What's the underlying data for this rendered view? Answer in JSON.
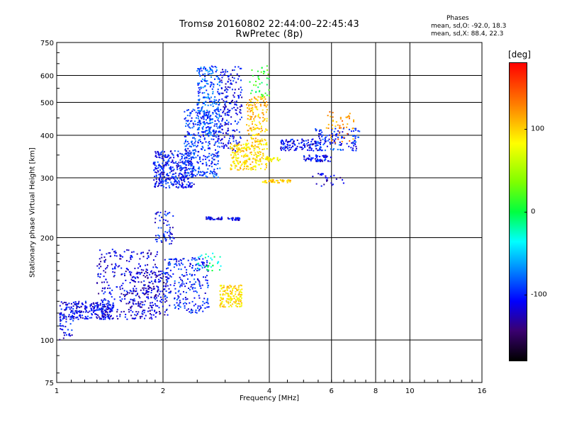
{
  "chart_data": {
    "type": "scatter",
    "title": "Tromsø 20160802 22:44:00–22:45:43",
    "subtitle": "RwPretec (8p)",
    "xlabel": "Frequency [MHz]",
    "ylabel": "Stationary phase Virtual Height [km]",
    "x_scale": "log",
    "y_scale": "log",
    "xlim": [
      1,
      16
    ],
    "ylim": [
      75,
      750
    ],
    "x_ticks": [
      "1",
      "2",
      "4",
      "6",
      "8",
      "10",
      "16"
    ],
    "x_tick_values": [
      1,
      2,
      4,
      6,
      8,
      10,
      16
    ],
    "y_ticks": [
      "75",
      "100",
      "200",
      "300",
      "400",
      "500",
      "600",
      "750"
    ],
    "y_tick_values": [
      75,
      100,
      200,
      300,
      400,
      500,
      600,
      750
    ],
    "grid": true,
    "phases": {
      "title": "Phases",
      "o_line": "mean, sd,O: -92.0, 18.3",
      "x_line": "mean, sd,X:  88.4, 22.3"
    },
    "colorbar": {
      "unit": "[deg]",
      "ticks": [
        "100",
        "0",
        "-100"
      ],
      "tick_values": [
        100,
        0,
        -100
      ],
      "range": [
        -180,
        180
      ]
    },
    "clusters": [
      {
        "fmin": 1.02,
        "fmax": 1.45,
        "hmin": 115,
        "hmax": 130,
        "phase": -110,
        "n": 260
      },
      {
        "fmin": 1.02,
        "fmax": 1.12,
        "hmin": 100,
        "hmax": 118,
        "phase": -110,
        "n": 30
      },
      {
        "fmin": 1.3,
        "fmax": 1.95,
        "hmin": 115,
        "hmax": 185,
        "phase": -115,
        "n": 300
      },
      {
        "fmin": 1.6,
        "fmax": 2.1,
        "hmin": 118,
        "hmax": 160,
        "phase": -120,
        "n": 160
      },
      {
        "fmin": 2.0,
        "fmax": 2.7,
        "hmin": 120,
        "hmax": 175,
        "phase": -100,
        "n": 240
      },
      {
        "fmin": 1.9,
        "fmax": 2.15,
        "hmin": 190,
        "hmax": 240,
        "phase": -105,
        "n": 60
      },
      {
        "fmin": 1.88,
        "fmax": 2.45,
        "hmin": 280,
        "hmax": 360,
        "phase": -105,
        "n": 360
      },
      {
        "fmin": 2.3,
        "fmax": 2.9,
        "hmin": 300,
        "hmax": 480,
        "phase": -95,
        "n": 340
      },
      {
        "fmin": 2.5,
        "fmax": 2.9,
        "hmin": 400,
        "hmax": 640,
        "phase": -85,
        "n": 240
      },
      {
        "fmin": 2.65,
        "fmax": 2.95,
        "hmin": 226,
        "hmax": 230,
        "phase": -110,
        "n": 40
      },
      {
        "fmin": 3.05,
        "fmax": 3.3,
        "hmin": 225,
        "hmax": 229,
        "phase": -110,
        "n": 30
      },
      {
        "fmin": 2.9,
        "fmax": 3.35,
        "hmin": 360,
        "hmax": 640,
        "phase": -110,
        "n": 200
      },
      {
        "fmin": 3.1,
        "fmax": 3.95,
        "hmin": 316,
        "hmax": 380,
        "phase": 95,
        "n": 220
      },
      {
        "fmin": 3.45,
        "fmax": 3.95,
        "hmin": 380,
        "hmax": 520,
        "phase": 105,
        "n": 150
      },
      {
        "fmin": 3.5,
        "fmax": 4.0,
        "hmin": 520,
        "hmax": 640,
        "phase": 10,
        "n": 40
      },
      {
        "fmin": 2.9,
        "fmax": 3.35,
        "hmin": 125,
        "hmax": 145,
        "phase": 95,
        "n": 140
      },
      {
        "fmin": 2.5,
        "fmax": 2.95,
        "hmin": 160,
        "hmax": 180,
        "phase": -20,
        "n": 30
      },
      {
        "fmin": 3.8,
        "fmax": 4.6,
        "hmin": 290,
        "hmax": 296,
        "phase": 105,
        "n": 45
      },
      {
        "fmin": 3.9,
        "fmax": 4.3,
        "hmin": 335,
        "hmax": 345,
        "phase": 85,
        "n": 30
      },
      {
        "fmin": 4.3,
        "fmax": 5.6,
        "hmin": 360,
        "hmax": 390,
        "phase": -110,
        "n": 120
      },
      {
        "fmin": 5.0,
        "fmax": 6.0,
        "hmin": 335,
        "hmax": 350,
        "phase": -110,
        "n": 60
      },
      {
        "fmin": 5.4,
        "fmax": 7.2,
        "hmin": 360,
        "hmax": 420,
        "phase": -100,
        "n": 120
      },
      {
        "fmin": 5.8,
        "fmax": 7.0,
        "hmin": 380,
        "hmax": 470,
        "phase": 120,
        "n": 50
      },
      {
        "fmin": 5.3,
        "fmax": 6.5,
        "hmin": 280,
        "hmax": 310,
        "phase": -120,
        "n": 25
      }
    ]
  }
}
